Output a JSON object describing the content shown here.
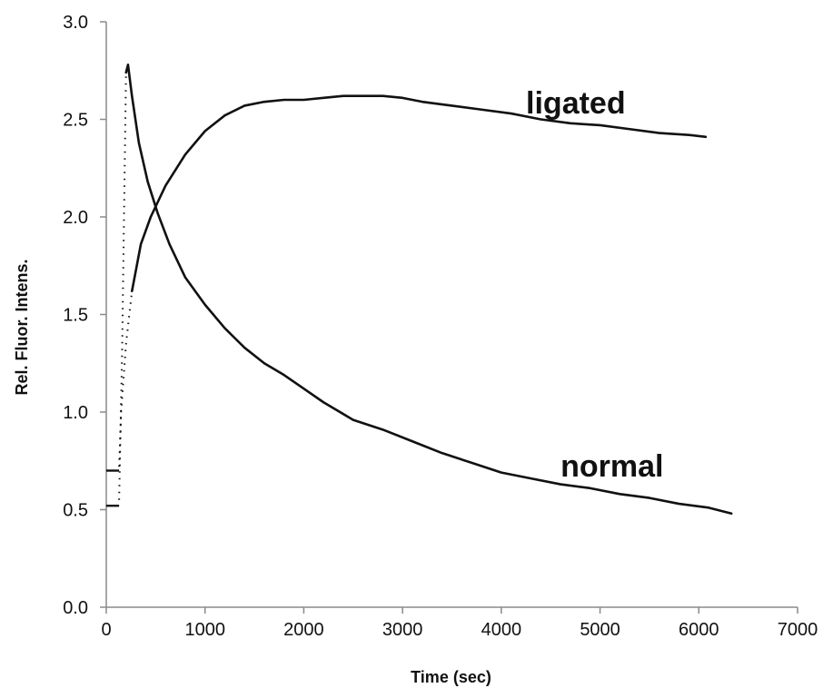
{
  "chart_data": {
    "type": "line",
    "xlabel": "Time (sec)",
    "ylabel": "Rel. Fluor. Intens.",
    "xlim": [
      0,
      7000
    ],
    "ylim": [
      0.0,
      3.0
    ],
    "xticks": [
      "0",
      "1000",
      "2000",
      "3000",
      "4000",
      "5000",
      "6000",
      "7000"
    ],
    "yticks": [
      "0.0",
      "0.5",
      "1.0",
      "1.5",
      "2.0",
      "2.5",
      "3.0"
    ],
    "grid": false,
    "legend": "none",
    "series": [
      {
        "name": "normal",
        "baseline": [
          [
            0,
            0.52
          ],
          [
            130,
            0.52
          ]
        ],
        "points": [
          [
            130,
            0.55
          ],
          [
            160,
            1.3
          ],
          [
            185,
            2.2
          ],
          [
            200,
            2.74
          ],
          [
            220,
            2.78
          ],
          [
            260,
            2.62
          ],
          [
            330,
            2.38
          ],
          [
            420,
            2.18
          ],
          [
            520,
            2.02
          ],
          [
            640,
            1.86
          ],
          [
            800,
            1.69
          ],
          [
            1000,
            1.55
          ],
          [
            1200,
            1.43
          ],
          [
            1400,
            1.33
          ],
          [
            1600,
            1.25
          ],
          [
            1800,
            1.19
          ],
          [
            2000,
            1.12
          ],
          [
            2200,
            1.05
          ],
          [
            2500,
            0.96
          ],
          [
            2800,
            0.91
          ],
          [
            3100,
            0.85
          ],
          [
            3400,
            0.79
          ],
          [
            3700,
            0.74
          ],
          [
            4000,
            0.69
          ],
          [
            4300,
            0.66
          ],
          [
            4600,
            0.63
          ],
          [
            4900,
            0.61
          ],
          [
            5200,
            0.58
          ],
          [
            5500,
            0.56
          ],
          [
            5800,
            0.53
          ],
          [
            6100,
            0.51
          ],
          [
            6330,
            0.48
          ]
        ]
      },
      {
        "name": "ligated",
        "baseline": [
          [
            0,
            0.7
          ],
          [
            130,
            0.7
          ]
        ],
        "points": [
          [
            130,
            0.72
          ],
          [
            150,
            1.0
          ],
          [
            200,
            1.35
          ],
          [
            260,
            1.62
          ],
          [
            350,
            1.86
          ],
          [
            450,
            2.0
          ],
          [
            600,
            2.16
          ],
          [
            800,
            2.32
          ],
          [
            1000,
            2.44
          ],
          [
            1200,
            2.52
          ],
          [
            1400,
            2.57
          ],
          [
            1600,
            2.59
          ],
          [
            1800,
            2.6
          ],
          [
            2000,
            2.6
          ],
          [
            2200,
            2.61
          ],
          [
            2400,
            2.62
          ],
          [
            2600,
            2.62
          ],
          [
            2800,
            2.62
          ],
          [
            3000,
            2.61
          ],
          [
            3200,
            2.59
          ],
          [
            3500,
            2.57
          ],
          [
            3800,
            2.55
          ],
          [
            4100,
            2.53
          ],
          [
            4400,
            2.5
          ],
          [
            4700,
            2.48
          ],
          [
            5000,
            2.47
          ],
          [
            5300,
            2.45
          ],
          [
            5600,
            2.43
          ],
          [
            5900,
            2.42
          ],
          [
            6070,
            2.41
          ]
        ]
      }
    ]
  }
}
